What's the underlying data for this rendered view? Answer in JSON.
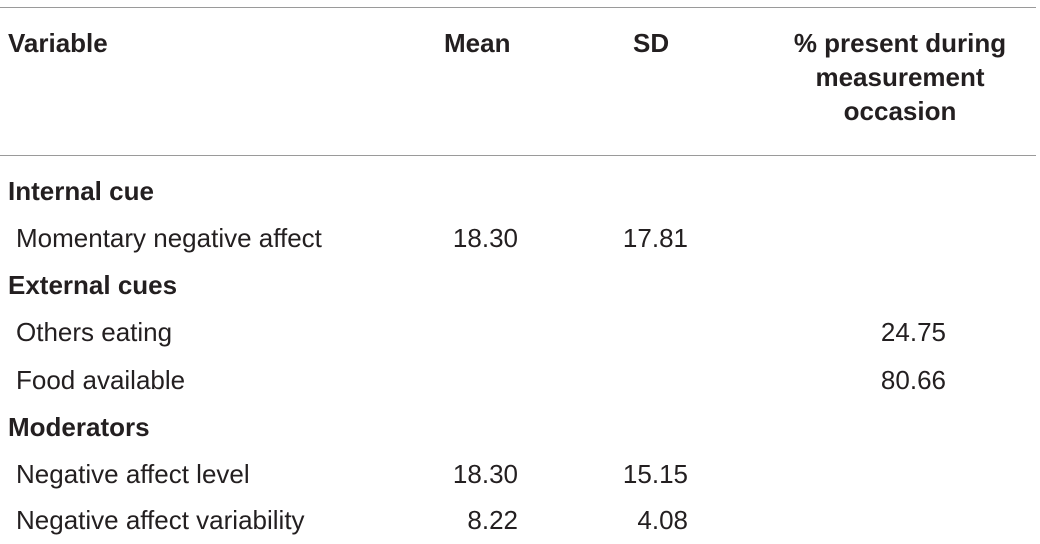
{
  "header": {
    "variable": "Variable",
    "mean": "Mean",
    "sd": "SD",
    "pct": "% present during measurement occasion"
  },
  "rows": [
    {
      "type": "section",
      "label": "Internal cue"
    },
    {
      "type": "data",
      "label": "Momentary negative affect",
      "mean": "18.30",
      "sd": "17.81",
      "pct": ""
    },
    {
      "type": "section",
      "label": "External cues"
    },
    {
      "type": "data",
      "label": "Others eating",
      "mean": "",
      "sd": "",
      "pct": "24.75"
    },
    {
      "type": "data",
      "label": "Food available",
      "mean": "",
      "sd": "",
      "pct": "80.66"
    },
    {
      "type": "section",
      "label": "Moderators"
    },
    {
      "type": "data",
      "label": "Negative affect level",
      "mean": "18.30",
      "sd": "15.15",
      "pct": ""
    },
    {
      "type": "data",
      "label": "Negative affect variability",
      "mean": "8.22",
      "sd": "4.08",
      "pct": ""
    }
  ]
}
